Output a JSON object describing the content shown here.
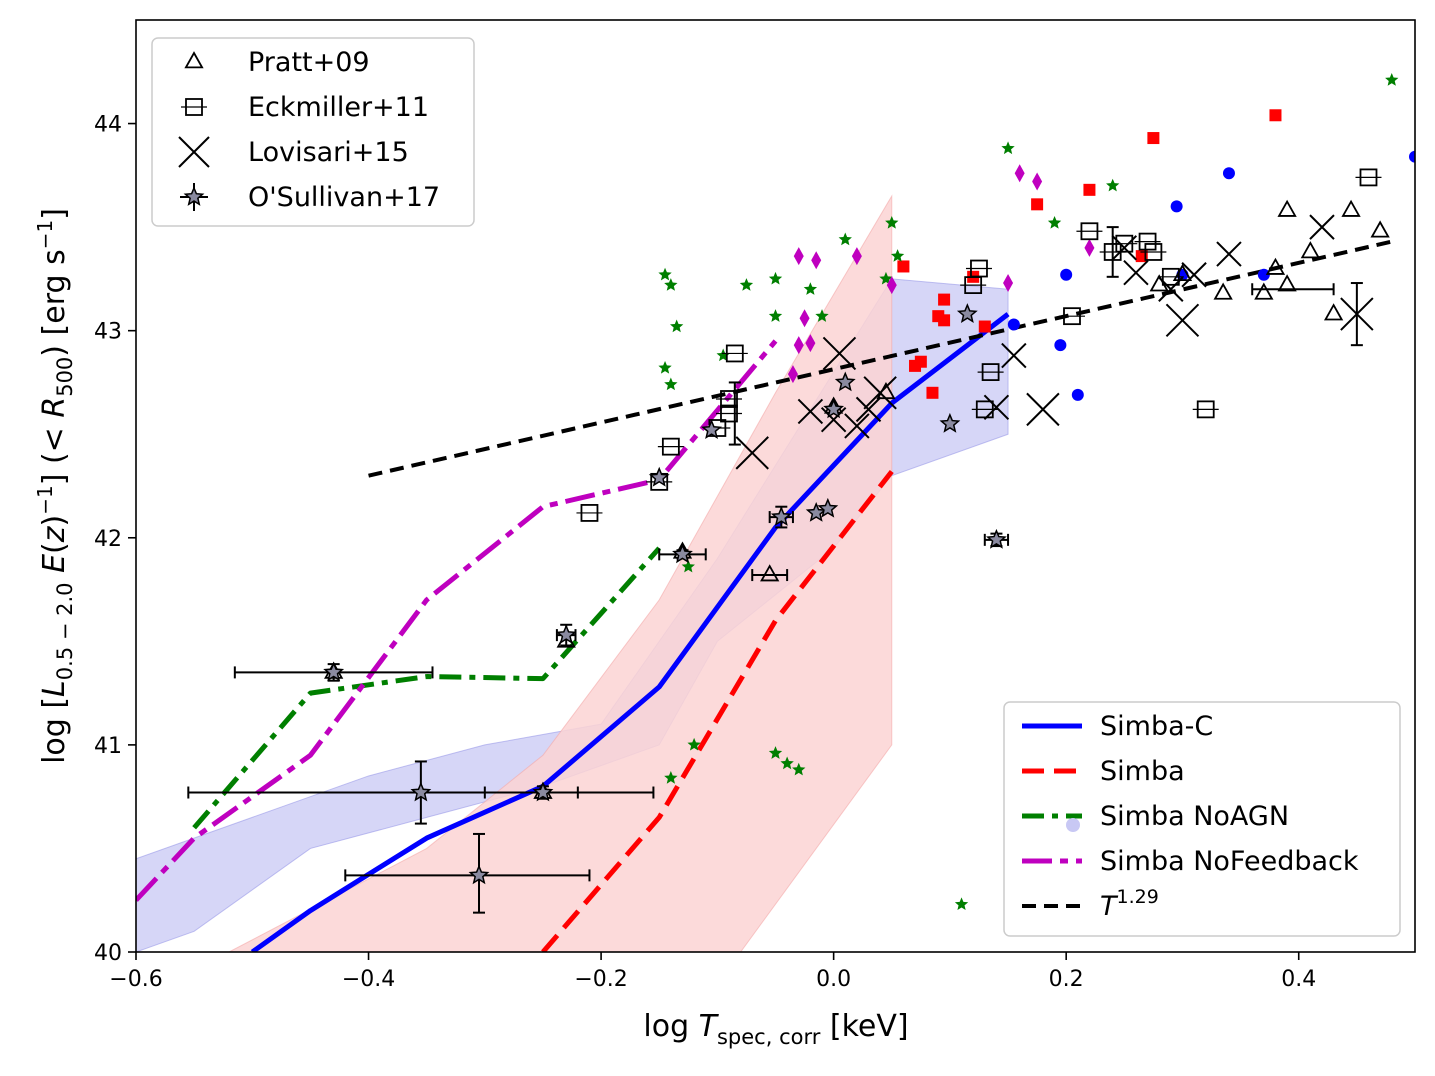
{
  "chart_data": {
    "type": "scatter",
    "xlabel": {
      "prefix": "log ",
      "symbol": "T",
      "subscript": "spec, corr",
      "suffix": " [keV]"
    },
    "ylabel": {
      "prefix": "log [",
      "symbol": "L",
      "subscript": "0.5 − 2.0",
      "mid": " E(z)",
      "sup": "−1",
      "tail": "] (< ",
      "r": "R",
      "rsub": "500",
      "end": ") [erg s",
      "endsup": "−1",
      "close": "]"
    },
    "xlim": [
      -0.6,
      0.5
    ],
    "ylim": [
      40,
      44.5
    ],
    "xticks": [
      -0.6,
      -0.4,
      -0.2,
      0.0,
      0.2,
      0.4
    ],
    "xtick_labels": [
      "−0.6",
      "−0.4",
      "−0.2",
      "0.0",
      "0.2",
      "0.4"
    ],
    "yticks": [
      40,
      41,
      42,
      43,
      44
    ],
    "ytick_labels": [
      "40",
      "41",
      "42",
      "43",
      "44"
    ],
    "colors": {
      "simba_c": "#0000ff",
      "simba": "#ff0000",
      "noagn": "#007f00",
      "nofb": "#bf00bf",
      "fit": "#000000",
      "band_blue": "#c8c8f4",
      "band_red": "#fbd4d4"
    },
    "legend_obs": [
      {
        "label": "Pratt+09",
        "marker": "triangle"
      },
      {
        "label": "Eckmiller+11",
        "marker": "square"
      },
      {
        "label": "Lovisari+15",
        "marker": "x"
      },
      {
        "label": "O'Sullivan+17",
        "marker": "star-err"
      }
    ],
    "legend_sim": [
      {
        "label": "Simba-C",
        "style": "solid",
        "color": "#0000ff"
      },
      {
        "label": "Simba",
        "style": "dashed",
        "color": "#ff0000"
      },
      {
        "label": "Simba NoAGN",
        "style": "dashdot",
        "color": "#007f00"
      },
      {
        "label": "Simba NoFeedback",
        "style": "longdash",
        "color": "#bf00bf"
      },
      {
        "label": "T",
        "sup": "1.29",
        "style": "dashed",
        "color": "#000000"
      }
    ],
    "series": [
      {
        "name": "Simba-C",
        "x": [
          -0.5,
          -0.45,
          -0.35,
          -0.25,
          -0.15,
          -0.05,
          0.05,
          0.15
        ],
        "y": [
          40.0,
          40.2,
          40.55,
          40.8,
          41.28,
          42.05,
          42.65,
          43.08
        ]
      },
      {
        "name": "Simba",
        "x": [
          -0.25,
          -0.15,
          -0.05,
          0.05
        ],
        "y": [
          40.0,
          40.65,
          41.6,
          42.32
        ]
      },
      {
        "name": "Simba NoAGN",
        "x": [
          -0.55,
          -0.45,
          -0.35,
          -0.25,
          -0.15
        ],
        "y": [
          40.6,
          41.25,
          41.33,
          41.32,
          41.95
        ]
      },
      {
        "name": "Simba NoFeedback",
        "x": [
          -0.6,
          -0.55,
          -0.45,
          -0.35,
          -0.25,
          -0.15,
          -0.05
        ],
        "y": [
          40.25,
          40.55,
          40.95,
          41.7,
          42.15,
          42.28,
          42.95
        ]
      },
      {
        "name": "T^1.29",
        "x": [
          -0.4,
          0.48
        ],
        "y": [
          42.3,
          43.43
        ]
      }
    ],
    "bands": [
      {
        "name": "Simba-C range",
        "x": [
          -0.6,
          -0.5,
          -0.4,
          -0.3,
          -0.2,
          -0.1,
          0.0,
          0.05,
          0.15,
          0.15,
          0.05,
          0.0,
          -0.1,
          -0.15,
          -0.2,
          -0.25,
          -0.35,
          -0.45,
          -0.55,
          -0.6
        ],
        "y": [
          40.45,
          40.65,
          40.85,
          41.0,
          41.1,
          41.9,
          42.8,
          43.25,
          43.2,
          42.5,
          42.3,
          41.95,
          41.5,
          41.0,
          40.9,
          40.8,
          40.65,
          40.5,
          40.1,
          40.0
        ]
      },
      {
        "name": "Simba range",
        "x": [
          -0.52,
          -0.35,
          -0.25,
          -0.15,
          -0.05,
          0.05,
          0.05,
          -0.08,
          -0.18,
          -0.28,
          -0.52
        ],
        "y": [
          40.0,
          40.5,
          40.95,
          41.7,
          42.7,
          43.65,
          41.0,
          40.0,
          40.0,
          40.0,
          40.0
        ]
      }
    ],
    "pratt09": [
      [
        -0.43,
        41.35
      ],
      [
        -0.25,
        40.77
      ],
      [
        -0.23,
        41.5
      ],
      [
        -0.13,
        41.93
      ],
      [
        -0.055,
        41.82
      ],
      [
        0.0,
        42.63
      ],
      [
        0.045,
        42.7
      ],
      [
        0.28,
        43.22
      ],
      [
        0.3,
        43.27
      ],
      [
        0.335,
        43.18
      ],
      [
        0.37,
        43.18
      ],
      [
        0.38,
        43.3
      ],
      [
        0.39,
        43.58
      ],
      [
        0.41,
        43.38
      ],
      [
        0.43,
        43.08
      ],
      [
        0.445,
        43.58
      ],
      [
        0.47,
        43.48
      ],
      [
        0.39,
        43.22
      ]
    ],
    "eckmiller11": [
      [
        -0.21,
        42.12
      ],
      [
        -0.15,
        42.27
      ],
      [
        -0.14,
        42.44
      ],
      [
        -0.1,
        42.53
      ],
      [
        -0.09,
        42.6
      ],
      [
        -0.09,
        42.67
      ],
      [
        -0.085,
        42.89
      ],
      [
        0.12,
        43.22
      ],
      [
        0.125,
        43.3
      ],
      [
        0.13,
        42.62
      ],
      [
        0.135,
        42.8
      ],
      [
        0.205,
        43.07
      ],
      [
        0.22,
        43.48
      ],
      [
        0.24,
        43.38
      ],
      [
        0.25,
        43.42
      ],
      [
        0.27,
        43.43
      ],
      [
        0.275,
        43.38
      ],
      [
        0.29,
        43.26
      ],
      [
        0.32,
        42.62
      ],
      [
        0.46,
        43.74
      ]
    ],
    "lovisari15": [
      [
        -0.07,
        42.41
      ],
      [
        -0.02,
        42.61
      ],
      [
        0.0,
        42.57
      ],
      [
        0.005,
        42.89
      ],
      [
        0.02,
        42.54
      ],
      [
        0.03,
        42.62
      ],
      [
        0.04,
        42.7
      ],
      [
        0.14,
        42.63
      ],
      [
        0.155,
        42.88
      ],
      [
        0.18,
        42.62
      ],
      [
        0.25,
        43.4
      ],
      [
        0.29,
        43.2
      ],
      [
        0.3,
        43.05
      ],
      [
        0.34,
        43.37
      ],
      [
        0.42,
        43.5
      ],
      [
        0.45,
        43.08
      ],
      [
        0.26,
        43.28
      ],
      [
        0.31,
        43.27
      ]
    ],
    "osullivan17": [
      [
        -0.43,
        41.35
      ],
      [
        -0.355,
        40.77
      ],
      [
        -0.305,
        40.37
      ],
      [
        -0.25,
        40.77
      ],
      [
        -0.23,
        41.53
      ],
      [
        -0.15,
        42.29
      ],
      [
        -0.13,
        41.92
      ],
      [
        -0.105,
        42.52
      ],
      [
        -0.045,
        42.1
      ],
      [
        -0.015,
        42.12
      ],
      [
        -0.005,
        42.14
      ],
      [
        0.01,
        42.75
      ],
      [
        0.1,
        42.55
      ],
      [
        0.115,
        43.08
      ],
      [
        0.14,
        41.99
      ],
      [
        0.0,
        42.62
      ]
    ],
    "error_bars": [
      {
        "x": -0.43,
        "y": 41.35,
        "xl": 0.085,
        "xh": 0.085,
        "yl": 0.04,
        "yh": 0.04
      },
      {
        "x": -0.355,
        "y": 40.77,
        "xl": 0.2,
        "xh": 0.135,
        "yl": 0.15,
        "yh": 0.15
      },
      {
        "x": -0.305,
        "y": 40.37,
        "xl": 0.115,
        "xh": 0.095,
        "yl": 0.18,
        "yh": 0.2
      },
      {
        "x": -0.25,
        "y": 40.77,
        "xl": 0.05,
        "xh": 0.095,
        "yl": 0.03,
        "yh": 0.03
      },
      {
        "x": -0.23,
        "y": 41.53,
        "xl": 0.008,
        "xh": 0.008,
        "yl": 0.05,
        "yh": 0.05
      },
      {
        "x": -0.13,
        "y": 41.92,
        "xl": 0.02,
        "xh": 0.02,
        "yl": 0.02,
        "yh": 0.02
      },
      {
        "x": -0.045,
        "y": 42.1,
        "xl": 0.01,
        "xh": 0.01,
        "yl": 0.05,
        "yh": 0.05
      },
      {
        "x": -0.055,
        "y": 41.82,
        "xl": 0.015,
        "xh": 0.015,
        "yl": 0.0,
        "yh": 0.0
      },
      {
        "x": 0.14,
        "y": 41.99,
        "xl": 0.01,
        "xh": 0.01,
        "yl": 0.03,
        "yh": 0.03
      },
      {
        "x": -0.085,
        "y": 42.6,
        "xl": 0.0,
        "xh": 0.0,
        "yl": 0.15,
        "yh": 0.15
      },
      {
        "x": 0.24,
        "y": 43.38,
        "xl": 0.0,
        "xh": 0.0,
        "yl": 0.12,
        "yh": 0.12
      },
      {
        "x": 0.45,
        "y": 43.08,
        "xl": 0.0,
        "xh": 0.0,
        "yl": 0.15,
        "yh": 0.15
      },
      {
        "x": 0.4,
        "y": 43.2,
        "xl": 0.04,
        "xh": 0.03,
        "yl": 0.0,
        "yh": 0.0
      }
    ],
    "simba_c_points": [
      [
        0.155,
        43.03
      ],
      [
        0.195,
        42.93
      ],
      [
        0.2,
        43.27
      ],
      [
        0.21,
        42.69
      ],
      [
        0.3,
        43.27
      ],
      [
        0.295,
        43.6
      ],
      [
        0.34,
        43.76
      ],
      [
        0.37,
        43.27
      ],
      [
        0.5,
        43.84
      ]
    ],
    "simba_points": [
      [
        0.06,
        43.31
      ],
      [
        0.07,
        42.83
      ],
      [
        0.075,
        42.85
      ],
      [
        0.085,
        42.7
      ],
      [
        0.09,
        43.07
      ],
      [
        0.095,
        43.05
      ],
      [
        0.095,
        43.15
      ],
      [
        0.12,
        43.26
      ],
      [
        0.13,
        43.02
      ],
      [
        0.175,
        43.61
      ],
      [
        0.22,
        43.68
      ],
      [
        0.265,
        43.36
      ],
      [
        0.275,
        43.93
      ],
      [
        0.38,
        44.04
      ]
    ],
    "noagn_points": [
      [
        -0.145,
        43.27
      ],
      [
        -0.14,
        43.22
      ],
      [
        -0.145,
        42.82
      ],
      [
        -0.14,
        42.74
      ],
      [
        -0.135,
        43.02
      ],
      [
        -0.125,
        41.86
      ],
      [
        -0.12,
        41.0
      ],
      [
        -0.14,
        40.84
      ],
      [
        -0.095,
        42.88
      ],
      [
        -0.075,
        43.22
      ],
      [
        -0.05,
        43.25
      ],
      [
        -0.05,
        43.07
      ],
      [
        -0.05,
        40.96
      ],
      [
        -0.04,
        40.91
      ],
      [
        -0.03,
        40.88
      ],
      [
        -0.02,
        43.2
      ],
      [
        -0.01,
        43.07
      ],
      [
        0.01,
        43.44
      ],
      [
        0.045,
        43.25
      ],
      [
        0.05,
        43.52
      ],
      [
        0.055,
        43.36
      ],
      [
        0.11,
        40.23
      ],
      [
        0.15,
        43.88
      ],
      [
        0.19,
        43.52
      ],
      [
        0.24,
        43.7
      ],
      [
        0.48,
        44.21
      ]
    ],
    "nofb_points": [
      [
        -0.03,
        43.36
      ],
      [
        -0.015,
        43.34
      ],
      [
        -0.025,
        43.06
      ],
      [
        -0.03,
        42.93
      ],
      [
        -0.02,
        42.94
      ],
      [
        -0.035,
        42.79
      ],
      [
        0.02,
        43.36
      ],
      [
        0.05,
        43.22
      ],
      [
        0.15,
        43.23
      ],
      [
        0.16,
        43.76
      ],
      [
        0.175,
        43.72
      ],
      [
        0.22,
        43.4
      ]
    ]
  }
}
